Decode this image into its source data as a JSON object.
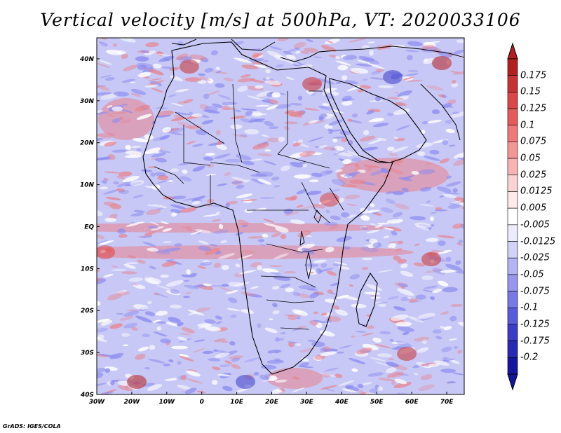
{
  "title": "Vertical velocity [m/s] at 500hPa, VT: 2020033106",
  "credit": "GrADS: IGES/COLA",
  "map": {
    "region": "Africa",
    "lon_range": [
      -30,
      75
    ],
    "lat_range": [
      -40,
      45
    ],
    "lon_ticks": [
      "30W",
      "20W",
      "10W",
      "0",
      "10E",
      "20E",
      "30E",
      "40E",
      "50E",
      "60E",
      "70E"
    ],
    "lat_ticks": [
      "40N",
      "30N",
      "20N",
      "10N",
      "EQ",
      "10S",
      "20S",
      "30S",
      "40S"
    ]
  },
  "colorbar": {
    "labels": [
      "0.175",
      "0.15",
      "0.125",
      "0.1",
      "0.075",
      "0.05",
      "0.025",
      "0.0125",
      "0.005",
      "-0.005",
      "-0.0125",
      "-0.025",
      "-0.05",
      "-0.075",
      "-0.1",
      "-0.125",
      "-0.175",
      "-0.2"
    ],
    "colors": [
      "#b41e1e",
      "#c83232",
      "#dc4646",
      "#e65a5a",
      "#f07878",
      "#f59696",
      "#f8b4b4",
      "#fad2d2",
      "#fdebeb",
      "#ffffff",
      "#ececfc",
      "#d2d2f8",
      "#b4b4f4",
      "#9696ee",
      "#7878e6",
      "#5a5adc",
      "#3c3cc8",
      "#2828b4",
      "#1414a0"
    ]
  },
  "field_colors": {
    "up": "#e8828a",
    "down": "#8a8af0",
    "neutral": "#ffffff"
  }
}
